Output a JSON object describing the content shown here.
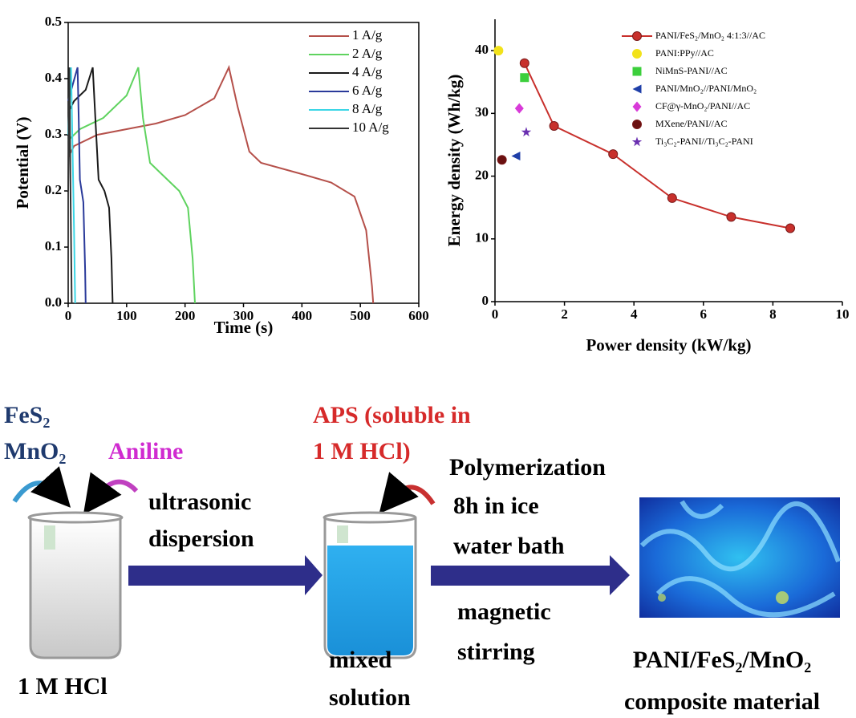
{
  "chart_data": [
    {
      "type": "line",
      "xlabel": "Time (s)",
      "ylabel": "Potential (V)",
      "xlim": [
        0,
        600
      ],
      "ylim": [
        0,
        0.5
      ],
      "xticks": [
        0,
        100,
        200,
        300,
        400,
        500,
        600
      ],
      "yticks": [
        {
          "value": 0,
          "label": "0.0"
        },
        0.1,
        0.2,
        0.3,
        0.4,
        0.5
      ],
      "frame": true,
      "series": [
        {
          "name": "1 A/g",
          "color": "#b5504a",
          "x": [
            0,
            10,
            50,
            100,
            150,
            200,
            250,
            275,
            290,
            310,
            330,
            400,
            450,
            490,
            510,
            520,
            522
          ],
          "values": [
            0.26,
            0.28,
            0.3,
            0.31,
            0.32,
            0.335,
            0.365,
            0.42,
            0.35,
            0.27,
            0.25,
            0.23,
            0.215,
            0.19,
            0.13,
            0.03,
            0
          ]
        },
        {
          "name": "2 A/g",
          "color": "#5fd35f",
          "x": [
            0,
            20,
            60,
            100,
            120,
            128,
            140,
            160,
            190,
            205,
            213,
            217
          ],
          "values": [
            0.29,
            0.31,
            0.33,
            0.37,
            0.42,
            0.33,
            0.25,
            0.23,
            0.2,
            0.17,
            0.08,
            0
          ]
        },
        {
          "name": "4 A/g",
          "color": "#1a1a1a",
          "x": [
            0,
            10,
            30,
            42,
            47,
            52,
            62,
            70,
            74,
            76
          ],
          "values": [
            0.34,
            0.36,
            0.38,
            0.42,
            0.32,
            0.22,
            0.2,
            0.17,
            0.08,
            0
          ]
        },
        {
          "name": "6 A/g",
          "color": "#2a3a9a",
          "x": [
            0,
            8,
            16,
            18,
            20,
            26,
            29,
            30
          ],
          "values": [
            0.36,
            0.39,
            0.42,
            0.33,
            0.22,
            0.18,
            0.06,
            0
          ]
        },
        {
          "name": "8 A/g",
          "color": "#3cd6e6",
          "x": [
            0,
            5,
            7,
            10,
            12
          ],
          "values": [
            0.3,
            0.42,
            0.3,
            0.13,
            0
          ]
        },
        {
          "name": "10 A/g",
          "color": "#333333",
          "x": [
            0,
            2,
            4,
            6
          ],
          "values": [
            0.2,
            0.42,
            0.2,
            0
          ]
        }
      ]
    },
    {
      "type": "scatter",
      "xlabel": "Power density (kW/kg)",
      "ylabel": "Energy density (Wh/kg)",
      "xlim": [
        0,
        10
      ],
      "ylim": [
        0,
        45
      ],
      "xticks": [
        0,
        2,
        4,
        6,
        8,
        10
      ],
      "yticks": [
        0,
        10,
        20,
        30,
        40
      ],
      "frame": false,
      "series": [
        {
          "name": "PANI/FeS₂/MnO₂ 4:1:3//AC",
          "color": "#c8302c",
          "marker": "circle",
          "line": true,
          "x": [
            0.85,
            1.7,
            3.4,
            5.1,
            6.8,
            8.5
          ],
          "values": [
            38,
            28,
            23.5,
            16.5,
            13.5,
            11.7
          ]
        },
        {
          "name": "PANI:PPy//AC",
          "color": "#f2e21a",
          "marker": "circle",
          "x": [
            0.1
          ],
          "values": [
            40
          ]
        },
        {
          "name": "NiMnS-PANI//AC",
          "color": "#3ccf3c",
          "marker": "square",
          "x": [
            0.85
          ],
          "values": [
            35.7
          ]
        },
        {
          "name": "PANI/MnO₂//PANI/MnO₂",
          "color": "#1f3fa8",
          "marker": "triangle",
          "x": [
            0.6
          ],
          "values": [
            23.2
          ]
        },
        {
          "name": "CF@γ-MnO₂/PANI//AC",
          "color": "#d83ad8",
          "marker": "diamond",
          "x": [
            0.7
          ],
          "values": [
            30.8
          ]
        },
        {
          "name": "MXene/PANI//AC",
          "color": "#6a1010",
          "marker": "circle",
          "x": [
            0.2
          ],
          "values": [
            22.6
          ]
        },
        {
          "name": "Ti₃C₂-PANI//Ti₃C₂-PANI",
          "color": "#6a2fb0",
          "marker": "star",
          "x": [
            0.9
          ],
          "values": [
            27
          ]
        }
      ]
    }
  ],
  "diagram": {
    "reactants": [
      "FeS₂",
      "MnO₂"
    ],
    "aniline": "Aniline",
    "aps": [
      "APS (soluble in",
      "1 M HCl)"
    ],
    "step1": [
      "ultrasonic",
      "dispersion"
    ],
    "step2": [
      "Polymerization",
      "8h in ice",
      "water bath"
    ],
    "step2b": [
      "magnetic",
      "stirring"
    ],
    "beaker1": "1 M HCl",
    "beaker2": [
      "mixed",
      "solution"
    ],
    "product": [
      "PANI/FeS₂/MnO₂",
      "composite material"
    ]
  }
}
